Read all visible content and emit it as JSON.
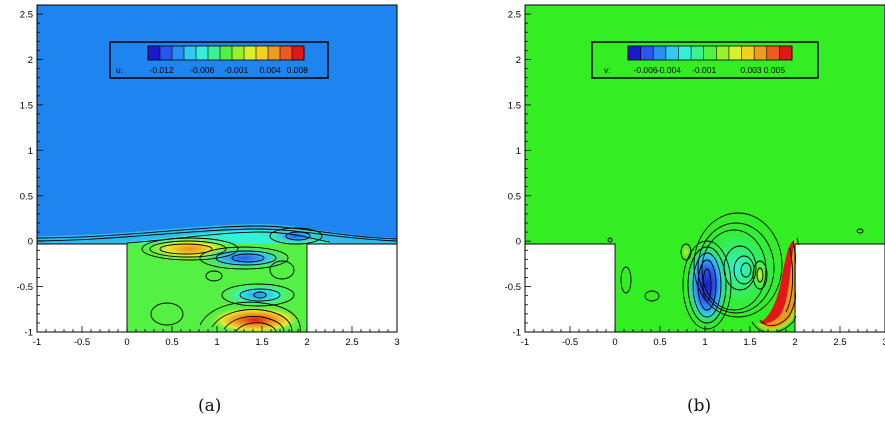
{
  "colors": {
    "background": "#ffffff",
    "u_field": "#1e84f0",
    "v_field": "#33ee22",
    "contour": "#000000",
    "legend_ramp": [
      "#1a1acc",
      "#2a55ee",
      "#2a8ff2",
      "#35c8f0",
      "#35f0d8",
      "#3ef094",
      "#55f044",
      "#9af030",
      "#d8f02a",
      "#f0d020",
      "#f09a20",
      "#f05a20",
      "#e01818"
    ]
  },
  "chart_data": [
    {
      "type": "contour",
      "panel_label": "(a)",
      "variable_label": "u:",
      "x_ticks": [
        "-1",
        "-0.5",
        "0",
        "0.5",
        "1",
        "1.5",
        "2",
        "2.5",
        "3"
      ],
      "y_ticks": [
        "-1",
        "-0.5",
        "0",
        "0.5",
        "1",
        "1.5",
        "2",
        "2.5"
      ],
      "xlim": [
        -1,
        3
      ],
      "ylim": [
        -1,
        2.6
      ],
      "legend_ticks": [
        "-0.012",
        "-0.006",
        "-0.001",
        "0.004",
        "0.008"
      ],
      "legend_range": [
        -0.014,
        0.009
      ],
      "domain_regions": [
        {
          "name": "upper-channel",
          "x": [
            -1,
            3
          ],
          "y": [
            0,
            2.6
          ]
        },
        {
          "name": "cavity",
          "x": [
            0,
            2
          ],
          "y": [
            -1,
            0
          ]
        }
      ],
      "notable_features": [
        {
          "name": "negative-lobe",
          "x": 1.3,
          "y": -0.15,
          "sign": "negative"
        },
        {
          "name": "negative-lobe",
          "x": 1.85,
          "y": 0.05,
          "sign": "negative"
        },
        {
          "name": "negative-lobe",
          "x": 1.4,
          "y": -0.58,
          "sign": "negative"
        },
        {
          "name": "positive-lobe",
          "x": 0.75,
          "y": -0.08,
          "sign": "positive"
        },
        {
          "name": "positive-lobe",
          "x": 1.45,
          "y": -0.87,
          "sign": "positive"
        }
      ]
    },
    {
      "type": "contour",
      "panel_label": "(b)",
      "variable_label": "v:",
      "x_ticks": [
        "-1",
        "-0.5",
        "0",
        "0.5",
        "1",
        "1.5",
        "2",
        "2.5",
        "3"
      ],
      "y_ticks": [
        "-1",
        "-0.5",
        "0",
        "0.5",
        "1",
        "1.5",
        "2",
        "2.5"
      ],
      "xlim": [
        -1,
        3
      ],
      "ylim": [
        -1,
        2.6
      ],
      "legend_ticks": [
        "-0.006",
        "-0.004",
        "-0.001",
        "0.003",
        "0.005"
      ],
      "legend_range": [
        -0.0075,
        0.0065
      ],
      "domain_regions": [
        {
          "name": "upper-channel",
          "x": [
            -1,
            3
          ],
          "y": [
            0,
            2.6
          ]
        },
        {
          "name": "cavity",
          "x": [
            0,
            2
          ],
          "y": [
            -1,
            0
          ]
        }
      ],
      "notable_features": [
        {
          "name": "negative-lobe",
          "x": 1.0,
          "y": -0.52,
          "sign": "negative"
        },
        {
          "name": "positive-lobe",
          "x": 1.85,
          "y": -0.48,
          "sign": "positive"
        },
        {
          "name": "positive-lobe",
          "x": 1.6,
          "y": -0.35,
          "sign": "positive"
        }
      ]
    }
  ]
}
